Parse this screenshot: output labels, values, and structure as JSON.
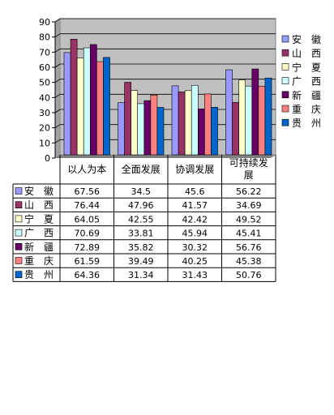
{
  "chart_data": {
    "type": "bar",
    "title": "",
    "xlabel": "",
    "ylabel": "",
    "ylim": [
      0,
      90
    ],
    "yticks": [
      0,
      10,
      20,
      30,
      40,
      50,
      60,
      70,
      80,
      90
    ],
    "grid": true,
    "legend": "right",
    "categories": [
      [
        "以人为本"
      ],
      [
        "全面发展"
      ],
      [
        "协调发展"
      ],
      [
        "可持续发",
        "展"
      ]
    ],
    "series": [
      {
        "name": "安　徽",
        "color": "#9999ff",
        "values": [
          67.56,
          34.5,
          45.6,
          56.22
        ],
        "labels": [
          "67.56",
          "34.5",
          "45.6",
          "56.22"
        ]
      },
      {
        "name": "山　西",
        "color": "#993366",
        "values": [
          76.44,
          47.96,
          41.57,
          34.69
        ],
        "labels": [
          "76.44",
          "47.96",
          "41.57",
          "34.69"
        ]
      },
      {
        "name": "宁　夏",
        "color": "#ffffcc",
        "values": [
          64.05,
          42.55,
          42.42,
          49.52
        ],
        "labels": [
          "64.05",
          "42.55",
          "42.42",
          "49.52"
        ]
      },
      {
        "name": "广　西",
        "color": "#ccffff",
        "values": [
          70.69,
          33.81,
          45.94,
          45.41
        ],
        "labels": [
          "70.69",
          "33.81",
          "45.94",
          "45.41"
        ]
      },
      {
        "name": "新　疆",
        "color": "#660066",
        "values": [
          72.89,
          35.82,
          30.32,
          56.76
        ],
        "labels": [
          "72.89",
          "35.82",
          "30.32",
          "56.76"
        ]
      },
      {
        "name": "重　庆",
        "color": "#ff8080",
        "values": [
          61.59,
          39.49,
          40.25,
          45.38
        ],
        "labels": [
          "61.59",
          "39.49",
          "40.25",
          "45.38"
        ]
      },
      {
        "name": "贵　州",
        "color": "#0066cc",
        "values": [
          64.36,
          31.34,
          31.43,
          50.76
        ],
        "labels": [
          "64.36",
          "31.34",
          "31.43",
          "50.76"
        ]
      }
    ]
  }
}
